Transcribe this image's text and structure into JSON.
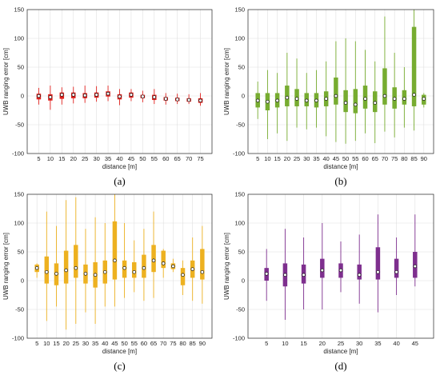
{
  "chart_data": [
    {
      "type": "box",
      "panel_label": "(a)",
      "color": "#e0201c",
      "xlabel": "distance [m]",
      "ylabel": "UWB ranging error [cm]",
      "ylim": [
        -100,
        150
      ],
      "yticks": [
        "-100",
        "-50",
        "0",
        "50",
        "100",
        "150"
      ],
      "grid": true,
      "categories": [
        "5",
        "10",
        "15",
        "20",
        "25",
        "30",
        "35",
        "40",
        "45",
        "50",
        "55",
        "60",
        "65",
        "70",
        "75"
      ],
      "boxes": [
        {
          "whisker_low": -15,
          "q1": -6,
          "median": 0,
          "q3": 4,
          "whisker_high": 14
        },
        {
          "whisker_low": -24,
          "q1": -8,
          "median": -2,
          "q3": 3,
          "whisker_high": 18
        },
        {
          "whisker_low": -15,
          "q1": -5,
          "median": 2,
          "q3": 6,
          "whisker_high": 15
        },
        {
          "whisker_low": -13,
          "q1": -4,
          "median": 2,
          "q3": 6,
          "whisker_high": 16
        },
        {
          "whisker_low": -12,
          "q1": -4,
          "median": 1,
          "q3": 5,
          "whisker_high": 18
        },
        {
          "whisker_low": -10,
          "q1": -3,
          "median": 2,
          "q3": 6,
          "whisker_high": 17
        },
        {
          "whisker_low": -9,
          "q1": -1,
          "median": 4,
          "q3": 8,
          "whisker_high": 18
        },
        {
          "whisker_low": -16,
          "q1": -6,
          "median": -1,
          "q3": 3,
          "whisker_high": 12
        },
        {
          "whisker_low": -9,
          "q1": -3,
          "median": 2,
          "q3": 6,
          "whisker_high": 12
        },
        {
          "whisker_low": -11,
          "q1": -4,
          "median": -1,
          "q3": 2,
          "whisker_high": 9
        },
        {
          "whisker_low": -14,
          "q1": -7,
          "median": -2,
          "q3": 2,
          "whisker_high": 12
        },
        {
          "whisker_low": -15,
          "q1": -8,
          "median": -5,
          "q3": -2,
          "whisker_high": 5
        },
        {
          "whisker_low": -14,
          "q1": -9,
          "median": -6,
          "q3": -3,
          "whisker_high": 4
        },
        {
          "whisker_low": -14,
          "q1": -10,
          "median": -7,
          "q3": -4,
          "whisker_high": 3
        },
        {
          "whisker_low": -17,
          "q1": -12,
          "median": -8,
          "q3": -4,
          "whisker_high": 5
        }
      ]
    },
    {
      "type": "box",
      "panel_label": "(b)",
      "color": "#77ac30",
      "xlabel": "distance [m]",
      "ylabel": "UWB ranging error [cm]",
      "ylim": [
        -100,
        150
      ],
      "yticks": [
        "-100",
        "-50",
        "0",
        "50",
        "100",
        "150"
      ],
      "grid": true,
      "categories": [
        "5",
        "10",
        "15",
        "20",
        "25",
        "30",
        "35",
        "40",
        "45",
        "50",
        "55",
        "60",
        "65",
        "70",
        "75",
        "80",
        "85",
        "90"
      ],
      "boxes": [
        {
          "whisker_low": -40,
          "q1": -20,
          "median": -8,
          "q3": 5,
          "whisker_high": 25
        },
        {
          "whisker_low": -75,
          "q1": -25,
          "median": -10,
          "q3": 5,
          "whisker_high": 45
        },
        {
          "whisker_low": -65,
          "q1": -20,
          "median": -8,
          "q3": 5,
          "whisker_high": 40
        },
        {
          "whisker_low": -78,
          "q1": -18,
          "median": -3,
          "q3": 18,
          "whisker_high": 75
        },
        {
          "whisker_low": -55,
          "q1": -18,
          "median": -5,
          "q3": 12,
          "whisker_high": 65
        },
        {
          "whisker_low": -58,
          "q1": -18,
          "median": -8,
          "q3": 5,
          "whisker_high": 40
        },
        {
          "whisker_low": -55,
          "q1": -20,
          "median": -8,
          "q3": 5,
          "whisker_high": 45
        },
        {
          "whisker_low": -70,
          "q1": -18,
          "median": -5,
          "q3": 8,
          "whisker_high": 60
        },
        {
          "whisker_low": -80,
          "q1": -15,
          "median": 0,
          "q3": 32,
          "whisker_high": 95
        },
        {
          "whisker_low": -83,
          "q1": -28,
          "median": -12,
          "q3": 10,
          "whisker_high": 100
        },
        {
          "whisker_low": -78,
          "q1": -30,
          "median": -15,
          "q3": 12,
          "whisker_high": 95
        },
        {
          "whisker_low": -65,
          "q1": -22,
          "median": -5,
          "q3": 18,
          "whisker_high": 80
        },
        {
          "whisker_low": -82,
          "q1": -28,
          "median": -12,
          "q3": 8,
          "whisker_high": 60
        },
        {
          "whisker_low": -62,
          "q1": -15,
          "median": 0,
          "q3": 48,
          "whisker_high": 138
        },
        {
          "whisker_low": -72,
          "q1": -22,
          "median": -5,
          "q3": 15,
          "whisker_high": 75
        },
        {
          "whisker_low": -55,
          "q1": -15,
          "median": -5,
          "q3": 10,
          "whisker_high": 50
        },
        {
          "whisker_low": -60,
          "q1": -18,
          "median": 2,
          "q3": 120,
          "whisker_high": 150
        },
        {
          "whisker_low": -20,
          "q1": -15,
          "median": -5,
          "q3": 2,
          "whisker_high": 5
        }
      ]
    },
    {
      "type": "box",
      "panel_label": "(c)",
      "color": "#edb120",
      "xlabel": "distance [m]",
      "ylabel": "UWB ranging error [cm]",
      "ylim": [
        -100,
        150
      ],
      "yticks": [
        "-100",
        "-50",
        "0",
        "50",
        "100",
        "150"
      ],
      "grid": true,
      "categories": [
        "5",
        "10",
        "15",
        "20",
        "25",
        "30",
        "35",
        "40",
        "45",
        "50",
        "55",
        "60",
        "65",
        "70",
        "75",
        "80",
        "85",
        "90"
      ],
      "boxes": [
        {
          "whisker_low": 5,
          "q1": 15,
          "median": 22,
          "q3": 28,
          "whisker_high": 30
        },
        {
          "whisker_low": -70,
          "q1": -5,
          "median": 15,
          "q3": 42,
          "whisker_high": 120
        },
        {
          "whisker_low": -45,
          "q1": -8,
          "median": 12,
          "q3": 30,
          "whisker_high": 95
        },
        {
          "whisker_low": -85,
          "q1": -5,
          "median": 18,
          "q3": 52,
          "whisker_high": 140
        },
        {
          "whisker_low": -75,
          "q1": 5,
          "median": 22,
          "q3": 62,
          "whisker_high": 145
        },
        {
          "whisker_low": -55,
          "q1": -5,
          "median": 12,
          "q3": 28,
          "whisker_high": 90
        },
        {
          "whisker_low": -75,
          "q1": -12,
          "median": 10,
          "q3": 32,
          "whisker_high": 110
        },
        {
          "whisker_low": -45,
          "q1": -5,
          "median": 15,
          "q3": 35,
          "whisker_high": 100
        },
        {
          "whisker_low": -45,
          "q1": 2,
          "median": 35,
          "q3": 103,
          "whisker_high": 150
        },
        {
          "whisker_low": -30,
          "q1": 5,
          "median": 22,
          "q3": 35,
          "whisker_high": 100
        },
        {
          "whisker_low": -20,
          "q1": 5,
          "median": 15,
          "q3": 32,
          "whisker_high": 70
        },
        {
          "whisker_low": -35,
          "q1": 5,
          "median": 22,
          "q3": 45,
          "whisker_high": 90
        },
        {
          "whisker_low": -30,
          "q1": 15,
          "median": 35,
          "q3": 62,
          "whisker_high": 120
        },
        {
          "whisker_low": 5,
          "q1": 22,
          "median": 30,
          "q3": 52,
          "whisker_high": 55
        },
        {
          "whisker_low": 15,
          "q1": 20,
          "median": 25,
          "q3": 30,
          "whisker_high": 38
        },
        {
          "whisker_low": -25,
          "q1": -8,
          "median": 10,
          "q3": 22,
          "whisker_high": 35
        },
        {
          "whisker_low": -35,
          "q1": 5,
          "median": 20,
          "q3": 35,
          "whisker_high": 75
        },
        {
          "whisker_low": -40,
          "q1": 2,
          "median": 15,
          "q3": 55,
          "whisker_high": 95
        }
      ]
    },
    {
      "type": "box",
      "panel_label": "(d)",
      "color": "#7e2f8e",
      "xlabel": "distance [m]",
      "ylabel": "UWB ranging error [cm]",
      "ylim": [
        -100,
        150
      ],
      "yticks": [
        "-100",
        "-50",
        "0",
        "50",
        "100",
        "150"
      ],
      "grid": true,
      "categories": [
        "5",
        "10",
        "15",
        "20",
        "25",
        "30",
        "35",
        "40",
        "45"
      ],
      "boxes": [
        {
          "whisker_low": -35,
          "q1": 0,
          "median": 12,
          "q3": 22,
          "whisker_high": 55
        },
        {
          "whisker_low": -68,
          "q1": -10,
          "median": 10,
          "q3": 30,
          "whisker_high": 90
        },
        {
          "whisker_low": -50,
          "q1": -5,
          "median": 10,
          "q3": 28,
          "whisker_high": 75
        },
        {
          "whisker_low": -50,
          "q1": 5,
          "median": 18,
          "q3": 38,
          "whisker_high": 100
        },
        {
          "whisker_low": -20,
          "q1": 5,
          "median": 18,
          "q3": 30,
          "whisker_high": 68
        },
        {
          "whisker_low": -40,
          "q1": 2,
          "median": 10,
          "q3": 28,
          "whisker_high": 80
        },
        {
          "whisker_low": -55,
          "q1": 2,
          "median": 15,
          "q3": 58,
          "whisker_high": 115
        },
        {
          "whisker_low": -25,
          "q1": 5,
          "median": 15,
          "q3": 38,
          "whisker_high": 75
        },
        {
          "whisker_low": -10,
          "q1": 5,
          "median": 25,
          "q3": 50,
          "whisker_high": 115
        }
      ]
    }
  ]
}
